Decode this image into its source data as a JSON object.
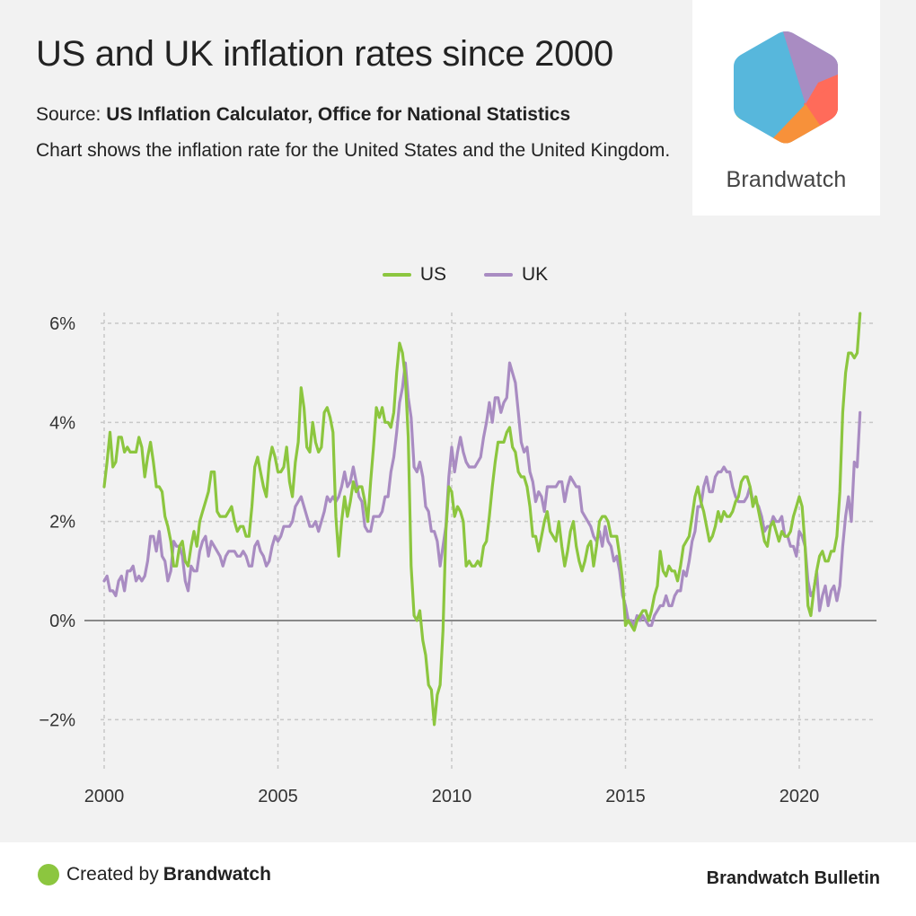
{
  "header": {
    "title": "US and UK inflation rates since 2000",
    "source_label": "Source:",
    "source_value": "US Inflation Calculator, Office for National Statistics",
    "description": "Chart shows the inflation rate for the United States and the United Kingdom."
  },
  "logo": {
    "text": "Brandwatch",
    "icon": "brandwatch-hexagon-logo"
  },
  "footer": {
    "created_by_label": "Created by",
    "created_by_brand": "Brandwatch",
    "publication": "Brandwatch Bulletin",
    "dot_color": "#8cc63f"
  },
  "chart_data": {
    "type": "line",
    "title": "US and UK inflation rates since 2000",
    "xlabel": "",
    "ylabel": "",
    "x_start": "2000-01",
    "x_frequency": "monthly",
    "x_end": "2021-10",
    "xlim": [
      2000,
      2022.2
    ],
    "ylim": [
      -3,
      6.5
    ],
    "x_ticks": [
      2000,
      2005,
      2010,
      2015,
      2020
    ],
    "x_tick_labels": [
      "2000",
      "2005",
      "2010",
      "2015",
      "2020"
    ],
    "y_ticks": [
      -2,
      0,
      2,
      4,
      6
    ],
    "y_tick_labels": [
      "−2%",
      "0%",
      "2%",
      "4%",
      "6%"
    ],
    "grid": true,
    "zero_line": true,
    "legend_position": "top-center",
    "series": [
      {
        "name": "US",
        "color": "#8cc63f",
        "values": [
          2.7,
          3.2,
          3.8,
          3.1,
          3.2,
          3.7,
          3.7,
          3.4,
          3.5,
          3.4,
          3.4,
          3.4,
          3.7,
          3.5,
          2.9,
          3.3,
          3.6,
          3.2,
          2.7,
          2.7,
          2.6,
          2.1,
          1.9,
          1.6,
          1.1,
          1.1,
          1.5,
          1.6,
          1.2,
          1.1,
          1.5,
          1.8,
          1.5,
          2.0,
          2.2,
          2.4,
          2.6,
          3.0,
          3.0,
          2.2,
          2.1,
          2.1,
          2.1,
          2.2,
          2.3,
          2.0,
          1.8,
          1.9,
          1.9,
          1.7,
          1.7,
          2.3,
          3.1,
          3.3,
          3.0,
          2.7,
          2.5,
          3.2,
          3.5,
          3.3,
          3.0,
          3.0,
          3.1,
          3.5,
          2.8,
          2.5,
          3.2,
          3.6,
          4.7,
          4.3,
          3.5,
          3.4,
          4.0,
          3.6,
          3.4,
          3.5,
          4.2,
          4.3,
          4.1,
          3.8,
          2.1,
          1.3,
          2.0,
          2.5,
          2.1,
          2.4,
          2.8,
          2.6,
          2.7,
          2.7,
          2.4,
          2.0,
          2.8,
          3.5,
          4.3,
          4.1,
          4.3,
          4.0,
          4.0,
          3.9,
          4.2,
          5.0,
          5.6,
          5.4,
          4.9,
          3.7,
          1.1,
          0.1,
          0.0,
          0.2,
          -0.4,
          -0.7,
          -1.3,
          -1.4,
          -2.1,
          -1.5,
          -1.3,
          -0.2,
          1.8,
          2.7,
          2.6,
          2.1,
          2.3,
          2.2,
          2.0,
          1.1,
          1.2,
          1.1,
          1.1,
          1.2,
          1.1,
          1.5,
          1.6,
          2.1,
          2.7,
          3.2,
          3.6,
          3.6,
          3.6,
          3.8,
          3.9,
          3.5,
          3.4,
          3.0,
          2.9,
          2.9,
          2.7,
          2.3,
          1.7,
          1.7,
          1.4,
          1.7,
          2.0,
          2.2,
          1.8,
          1.7,
          1.6,
          2.0,
          1.5,
          1.1,
          1.4,
          1.8,
          2.0,
          1.5,
          1.2,
          1.0,
          1.2,
          1.5,
          1.6,
          1.1,
          1.5,
          2.0,
          2.1,
          2.1,
          2.0,
          1.7,
          1.7,
          1.7,
          1.3,
          0.8,
          -0.1,
          0.0,
          -0.1,
          -0.2,
          0.0,
          0.1,
          0.2,
          0.2,
          0.0,
          0.2,
          0.5,
          0.7,
          1.4,
          1.0,
          0.9,
          1.1,
          1.0,
          1.0,
          0.8,
          1.1,
          1.5,
          1.6,
          1.7,
          2.1,
          2.5,
          2.7,
          2.4,
          2.2,
          1.9,
          1.6,
          1.7,
          1.9,
          2.2,
          2.0,
          2.2,
          2.1,
          2.1,
          2.2,
          2.4,
          2.5,
          2.8,
          2.9,
          2.9,
          2.7,
          2.3,
          2.5,
          2.2,
          1.9,
          1.6,
          1.5,
          1.9,
          2.0,
          1.8,
          1.6,
          1.8,
          1.7,
          1.7,
          1.8,
          2.1,
          2.3,
          2.5,
          2.3,
          1.5,
          0.3,
          0.1,
          0.6,
          1.0,
          1.3,
          1.4,
          1.2,
          1.2,
          1.4,
          1.4,
          1.7,
          2.6,
          4.2,
          5.0,
          5.4,
          5.4,
          5.3,
          5.4,
          6.2
        ]
      },
      {
        "name": "UK",
        "color": "#a98cc2",
        "values": [
          0.8,
          0.9,
          0.6,
          0.6,
          0.5,
          0.8,
          0.9,
          0.6,
          1.0,
          1.0,
          1.1,
          0.8,
          0.9,
          0.8,
          0.9,
          1.2,
          1.7,
          1.7,
          1.4,
          1.8,
          1.3,
          1.2,
          0.8,
          1.0,
          1.6,
          1.5,
          1.5,
          1.3,
          0.8,
          0.6,
          1.1,
          1.0,
          1.0,
          1.4,
          1.6,
          1.7,
          1.3,
          1.6,
          1.5,
          1.4,
          1.3,
          1.1,
          1.3,
          1.4,
          1.4,
          1.4,
          1.3,
          1.3,
          1.4,
          1.3,
          1.1,
          1.1,
          1.5,
          1.6,
          1.4,
          1.3,
          1.1,
          1.2,
          1.5,
          1.7,
          1.6,
          1.7,
          1.9,
          1.9,
          1.9,
          2.0,
          2.3,
          2.4,
          2.5,
          2.3,
          2.1,
          1.9,
          1.9,
          2.0,
          1.8,
          2.0,
          2.2,
          2.5,
          2.4,
          2.5,
          2.4,
          2.5,
          2.7,
          3.0,
          2.7,
          2.8,
          3.1,
          2.8,
          2.5,
          2.4,
          1.9,
          1.8,
          1.8,
          2.1,
          2.1,
          2.1,
          2.2,
          2.5,
          2.5,
          3.0,
          3.3,
          3.8,
          4.4,
          4.7,
          5.2,
          4.5,
          4.1,
          3.1,
          3.0,
          3.2,
          2.9,
          2.3,
          2.2,
          1.8,
          1.8,
          1.6,
          1.1,
          1.5,
          1.9,
          2.9,
          3.5,
          3.0,
          3.4,
          3.7,
          3.4,
          3.2,
          3.1,
          3.1,
          3.1,
          3.2,
          3.3,
          3.7,
          4.0,
          4.4,
          4.0,
          4.5,
          4.5,
          4.2,
          4.4,
          4.5,
          5.2,
          5.0,
          4.8,
          4.2,
          3.6,
          3.4,
          3.5,
          3.0,
          2.8,
          2.4,
          2.6,
          2.5,
          2.2,
          2.7,
          2.7,
          2.7,
          2.7,
          2.8,
          2.8,
          2.4,
          2.7,
          2.9,
          2.8,
          2.7,
          2.7,
          2.2,
          2.1,
          2.0,
          1.9,
          1.7,
          1.6,
          1.8,
          1.5,
          1.9,
          1.6,
          1.5,
          1.2,
          1.3,
          1.0,
          0.5,
          0.3,
          0.0,
          0.0,
          -0.1,
          0.1,
          0.0,
          0.1,
          0.0,
          -0.1,
          -0.1,
          0.1,
          0.2,
          0.3,
          0.3,
          0.5,
          0.3,
          0.3,
          0.5,
          0.6,
          0.6,
          1.0,
          0.9,
          1.2,
          1.6,
          1.8,
          2.3,
          2.3,
          2.7,
          2.9,
          2.6,
          2.6,
          2.9,
          3.0,
          3.0,
          3.1,
          3.0,
          3.0,
          2.7,
          2.5,
          2.4,
          2.4,
          2.4,
          2.5,
          2.7,
          2.4,
          2.4,
          2.3,
          2.1,
          1.8,
          1.9,
          1.9,
          2.1,
          2.0,
          2.0,
          2.1,
          1.7,
          1.7,
          1.5,
          1.5,
          1.3,
          1.8,
          1.7,
          1.5,
          0.8,
          0.5,
          0.6,
          1.0,
          0.2,
          0.5,
          0.7,
          0.3,
          0.6,
          0.7,
          0.4,
          0.7,
          1.5,
          2.1,
          2.5,
          2.0,
          3.2,
          3.1,
          4.2
        ]
      }
    ]
  }
}
